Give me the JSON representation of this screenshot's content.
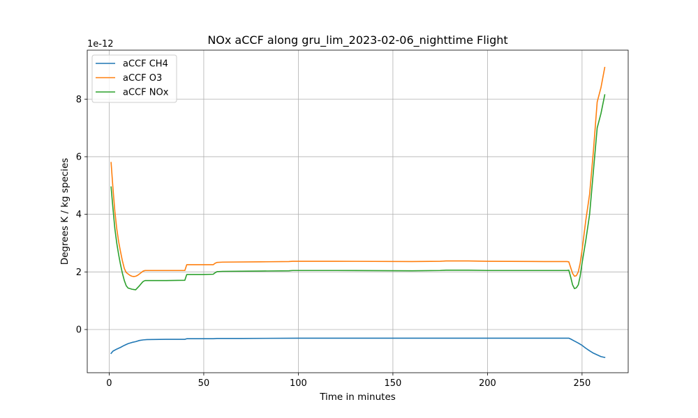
{
  "chart_data": {
    "type": "line",
    "title": "NOx aCCF along gru_lim_2023-02-06_nighttime Flight",
    "xlabel": "Time in minutes",
    "ylabel": "Degrees K / kg species",
    "y_offset_text": "1e-12",
    "y_scale_exponent": -12,
    "xlim": [
      -11.6,
      274.4
    ],
    "ylim": [
      -1.5,
      9.7
    ],
    "x_ticks": [
      0,
      50,
      100,
      150,
      200,
      250
    ],
    "x_tick_labels": [
      "0",
      "50",
      "100",
      "150",
      "200",
      "250"
    ],
    "y_ticks": [
      0,
      2,
      4,
      6,
      8
    ],
    "y_tick_labels": [
      "0",
      "2",
      "4",
      "6",
      "8"
    ],
    "grid": true,
    "legend_position": "upper-left",
    "series": [
      {
        "name": "aCCF CH4",
        "color": "#1f77b4",
        "x": [
          1,
          2,
          4,
          6,
          8,
          10,
          12,
          14,
          16,
          18,
          20,
          30,
          40,
          41,
          50,
          55,
          57,
          70,
          100,
          150,
          200,
          243,
          244,
          246,
          248,
          250,
          252,
          254,
          256,
          258,
          260,
          262
        ],
        "y": [
          -0.83,
          -0.75,
          -0.68,
          -0.62,
          -0.55,
          -0.49,
          -0.45,
          -0.42,
          -0.38,
          -0.36,
          -0.35,
          -0.34,
          -0.34,
          -0.32,
          -0.32,
          -0.32,
          -0.31,
          -0.31,
          -0.3,
          -0.3,
          -0.3,
          -0.3,
          -0.33,
          -0.4,
          -0.47,
          -0.55,
          -0.65,
          -0.74,
          -0.82,
          -0.88,
          -0.94,
          -0.97
        ]
      },
      {
        "name": "aCCF O3",
        "color": "#ff7f0e",
        "x": [
          1,
          2,
          3,
          4,
          5,
          6,
          7,
          8,
          9,
          10,
          11,
          12,
          13,
          14,
          15,
          16,
          17,
          18,
          19,
          20,
          30,
          40,
          41,
          50,
          55,
          56,
          57,
          60,
          80,
          95,
          97,
          120,
          160,
          175,
          178,
          190,
          200,
          230,
          242,
          243,
          244,
          245,
          246,
          247,
          248,
          249,
          250,
          252,
          254,
          256,
          258,
          260,
          262
        ],
        "y": [
          5.8,
          4.9,
          4.1,
          3.5,
          3.05,
          2.7,
          2.38,
          2.12,
          1.98,
          1.93,
          1.88,
          1.85,
          1.84,
          1.85,
          1.88,
          1.93,
          1.98,
          2.03,
          2.05,
          2.05,
          2.05,
          2.05,
          2.25,
          2.25,
          2.25,
          2.3,
          2.33,
          2.34,
          2.35,
          2.36,
          2.37,
          2.37,
          2.36,
          2.37,
          2.38,
          2.38,
          2.37,
          2.36,
          2.36,
          2.35,
          2.15,
          1.95,
          1.85,
          1.87,
          2.0,
          2.3,
          2.75,
          3.8,
          4.7,
          6.2,
          7.9,
          8.4,
          9.1
        ]
      },
      {
        "name": "aCCF NOx",
        "color": "#2ca02c",
        "x": [
          1,
          2,
          3,
          4,
          5,
          6,
          7,
          8,
          9,
          10,
          11,
          12,
          13,
          14,
          15,
          16,
          17,
          18,
          19,
          20,
          30,
          40,
          41,
          50,
          55,
          56,
          57,
          60,
          80,
          95,
          97,
          120,
          160,
          175,
          178,
          190,
          200,
          230,
          242,
          243,
          244,
          245,
          246,
          247,
          248,
          249,
          250,
          252,
          254,
          256,
          258,
          260,
          262
        ],
        "y": [
          4.95,
          4.2,
          3.5,
          3.0,
          2.6,
          2.25,
          1.95,
          1.7,
          1.52,
          1.44,
          1.42,
          1.4,
          1.39,
          1.38,
          1.45,
          1.52,
          1.6,
          1.67,
          1.7,
          1.7,
          1.7,
          1.71,
          1.91,
          1.91,
          1.92,
          1.97,
          2.01,
          2.02,
          2.03,
          2.04,
          2.05,
          2.05,
          2.04,
          2.05,
          2.06,
          2.06,
          2.05,
          2.05,
          2.05,
          2.06,
          1.82,
          1.55,
          1.42,
          1.45,
          1.55,
          1.85,
          2.3,
          3.1,
          4.0,
          5.5,
          7.0,
          7.5,
          8.15
        ]
      }
    ]
  }
}
